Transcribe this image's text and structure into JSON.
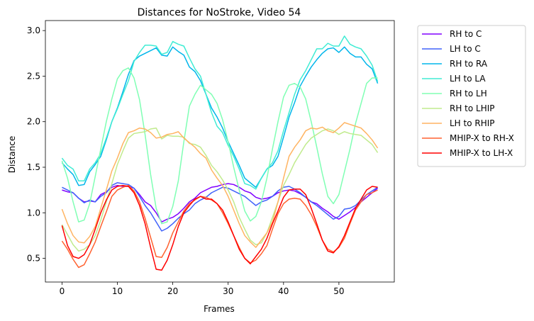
{
  "chart_data": {
    "type": "line",
    "title": "Distances for NoStroke, Video 54",
    "xlabel": "Frames",
    "ylabel": "Distance",
    "xlim": [
      -3,
      60
    ],
    "ylim": [
      0.24,
      3.11
    ],
    "xticks": [
      0,
      10,
      20,
      30,
      40,
      50
    ],
    "yticks": [
      0.5,
      1.0,
      1.5,
      2.0,
      2.5,
      3.0
    ],
    "ytick_labels": [
      "0.5",
      "1.0",
      "1.5",
      "2.0",
      "2.5",
      "3.0"
    ],
    "grid": false,
    "legend_position": "outside right, top",
    "x": [
      0,
      1,
      2,
      3,
      4,
      5,
      6,
      7,
      8,
      9,
      10,
      11,
      12,
      13,
      14,
      15,
      16,
      17,
      18,
      19,
      20,
      21,
      22,
      23,
      24,
      25,
      26,
      27,
      28,
      29,
      30,
      31,
      32,
      33,
      34,
      35,
      36,
      37,
      38,
      39,
      40,
      41,
      42,
      43,
      44,
      45,
      46,
      47,
      48,
      49,
      50,
      51,
      52,
      53,
      54,
      55,
      56,
      57
    ],
    "series": [
      {
        "name": "RH to C",
        "color": "#8000ff",
        "values": [
          1.25,
          1.23,
          1.22,
          1.16,
          1.12,
          1.13,
          1.12,
          1.2,
          1.23,
          1.28,
          1.3,
          1.29,
          1.29,
          1.27,
          1.2,
          1.12,
          1.08,
          1.0,
          0.9,
          0.93,
          0.95,
          0.99,
          1.05,
          1.12,
          1.16,
          1.22,
          1.25,
          1.28,
          1.29,
          1.31,
          1.32,
          1.31,
          1.28,
          1.24,
          1.22,
          1.17,
          1.15,
          1.16,
          1.18,
          1.22,
          1.24,
          1.25,
          1.24,
          1.21,
          1.17,
          1.12,
          1.1,
          1.05,
          1.01,
          0.96,
          0.93,
          0.97,
          1.01,
          1.06,
          1.12,
          1.17,
          1.22,
          1.27
        ]
      },
      {
        "name": "LH to C",
        "color": "#4062fa",
        "values": [
          1.28,
          1.25,
          1.22,
          1.16,
          1.11,
          1.14,
          1.12,
          1.18,
          1.22,
          1.3,
          1.33,
          1.32,
          1.31,
          1.27,
          1.18,
          1.08,
          1.0,
          0.9,
          0.8,
          0.83,
          0.88,
          0.94,
          0.99,
          1.03,
          1.1,
          1.14,
          1.17,
          1.22,
          1.25,
          1.28,
          1.27,
          1.24,
          1.21,
          1.18,
          1.13,
          1.08,
          1.12,
          1.14,
          1.18,
          1.24,
          1.28,
          1.29,
          1.26,
          1.22,
          1.17,
          1.12,
          1.08,
          1.03,
          0.98,
          0.93,
          0.96,
          1.04,
          1.05,
          1.08,
          1.14,
          1.2,
          1.24,
          1.28
        ]
      },
      {
        "name": "RH to RA",
        "color": "#00b5eb",
        "values": [
          1.55,
          1.48,
          1.42,
          1.3,
          1.31,
          1.45,
          1.53,
          1.62,
          1.8,
          2.0,
          2.15,
          2.33,
          2.52,
          2.67,
          2.72,
          2.75,
          2.78,
          2.81,
          2.73,
          2.72,
          2.82,
          2.77,
          2.73,
          2.6,
          2.55,
          2.45,
          2.3,
          2.15,
          2.05,
          1.93,
          1.78,
          1.65,
          1.52,
          1.38,
          1.33,
          1.28,
          1.38,
          1.48,
          1.52,
          1.62,
          1.83,
          2.05,
          2.21,
          2.39,
          2.5,
          2.6,
          2.68,
          2.75,
          2.8,
          2.81,
          2.76,
          2.82,
          2.75,
          2.71,
          2.71,
          2.63,
          2.58,
          2.42
        ]
      },
      {
        "name": "LH to LA",
        "color": "#40ecd4",
        "values": [
          1.6,
          1.52,
          1.48,
          1.35,
          1.35,
          1.48,
          1.55,
          1.65,
          1.82,
          2.0,
          2.14,
          2.3,
          2.45,
          2.66,
          2.76,
          2.84,
          2.84,
          2.83,
          2.74,
          2.76,
          2.88,
          2.85,
          2.83,
          2.7,
          2.58,
          2.5,
          2.3,
          2.1,
          1.95,
          1.88,
          1.74,
          1.62,
          1.48,
          1.32,
          1.3,
          1.26,
          1.38,
          1.48,
          1.55,
          1.68,
          1.9,
          2.1,
          2.3,
          2.46,
          2.56,
          2.68,
          2.8,
          2.8,
          2.86,
          2.83,
          2.83,
          2.94,
          2.85,
          2.82,
          2.8,
          2.72,
          2.62,
          2.44
        ]
      },
      {
        "name": "RH to LH",
        "color": "#80ffb4",
        "values": [
          1.57,
          1.38,
          1.12,
          0.9,
          0.92,
          1.1,
          1.4,
          1.7,
          2.0,
          2.25,
          2.47,
          2.56,
          2.59,
          2.48,
          2.24,
          1.86,
          1.42,
          1.05,
          0.88,
          0.9,
          1.07,
          1.35,
          1.78,
          2.17,
          2.3,
          2.4,
          2.35,
          2.3,
          2.2,
          2.02,
          1.78,
          1.5,
          1.25,
          1.02,
          0.91,
          0.96,
          1.12,
          1.38,
          1.7,
          2.0,
          2.27,
          2.4,
          2.42,
          2.38,
          2.25,
          2.0,
          1.72,
          1.43,
          1.18,
          1.1,
          1.2,
          1.45,
          1.7,
          1.98,
          2.2,
          2.42,
          2.48,
          2.48
        ]
      },
      {
        "name": "RH to LHIP",
        "color": "#c0eb8d",
        "values": [
          0.87,
          0.76,
          0.65,
          0.58,
          0.6,
          0.65,
          0.75,
          0.92,
          1.12,
          1.32,
          1.53,
          1.68,
          1.82,
          1.87,
          1.88,
          1.89,
          1.92,
          1.93,
          1.81,
          1.85,
          1.84,
          1.84,
          1.83,
          1.76,
          1.75,
          1.72,
          1.63,
          1.52,
          1.45,
          1.36,
          1.25,
          1.12,
          0.95,
          0.82,
          0.7,
          0.65,
          0.67,
          0.78,
          0.95,
          1.12,
          1.3,
          1.42,
          1.55,
          1.65,
          1.75,
          1.82,
          1.86,
          1.9,
          1.92,
          1.9,
          1.86,
          1.89,
          1.87,
          1.86,
          1.85,
          1.8,
          1.75,
          1.66
        ]
      },
      {
        "name": "LH to RHIP",
        "color": "#ffb462",
        "values": [
          1.04,
          0.88,
          0.75,
          0.68,
          0.67,
          0.74,
          0.85,
          1.05,
          1.25,
          1.46,
          1.6,
          1.76,
          1.88,
          1.9,
          1.93,
          1.92,
          1.88,
          1.82,
          1.83,
          1.86,
          1.87,
          1.89,
          1.82,
          1.77,
          1.72,
          1.65,
          1.6,
          1.47,
          1.38,
          1.3,
          1.18,
          1.03,
          0.88,
          0.75,
          0.68,
          0.62,
          0.7,
          0.78,
          0.9,
          1.12,
          1.38,
          1.62,
          1.72,
          1.8,
          1.9,
          1.93,
          1.92,
          1.94,
          1.9,
          1.88,
          1.93,
          1.99,
          1.97,
          1.95,
          1.93,
          1.87,
          1.8,
          1.71
        ]
      },
      {
        "name": "MHIP-X to RH-X",
        "color": "#ff6230",
        "values": [
          0.69,
          0.6,
          0.49,
          0.4,
          0.43,
          0.55,
          0.68,
          0.85,
          1.01,
          1.18,
          1.25,
          1.28,
          1.3,
          1.24,
          1.12,
          0.94,
          0.73,
          0.52,
          0.51,
          0.62,
          0.78,
          0.9,
          1.02,
          1.1,
          1.14,
          1.18,
          1.17,
          1.14,
          1.1,
          1.0,
          0.88,
          0.75,
          0.62,
          0.5,
          0.45,
          0.48,
          0.55,
          0.64,
          0.82,
          0.99,
          1.1,
          1.15,
          1.16,
          1.15,
          1.08,
          0.98,
          0.85,
          0.7,
          0.6,
          0.57,
          0.62,
          0.72,
          0.88,
          1.03,
          1.12,
          1.2,
          1.22,
          1.25
        ]
      },
      {
        "name": "MHIP-X to LH-X",
        "color": "#ff0000",
        "values": [
          0.86,
          0.64,
          0.52,
          0.5,
          0.54,
          0.65,
          0.82,
          1.0,
          1.14,
          1.25,
          1.29,
          1.3,
          1.29,
          1.22,
          1.08,
          0.88,
          0.62,
          0.38,
          0.37,
          0.48,
          0.65,
          0.85,
          1.0,
          1.08,
          1.15,
          1.18,
          1.15,
          1.15,
          1.1,
          1.03,
          0.9,
          0.75,
          0.6,
          0.5,
          0.44,
          0.52,
          0.6,
          0.72,
          0.88,
          1.02,
          1.17,
          1.25,
          1.26,
          1.26,
          1.2,
          1.05,
          0.88,
          0.7,
          0.58,
          0.56,
          0.63,
          0.75,
          0.9,
          1.05,
          1.15,
          1.25,
          1.29,
          1.28
        ]
      }
    ]
  }
}
